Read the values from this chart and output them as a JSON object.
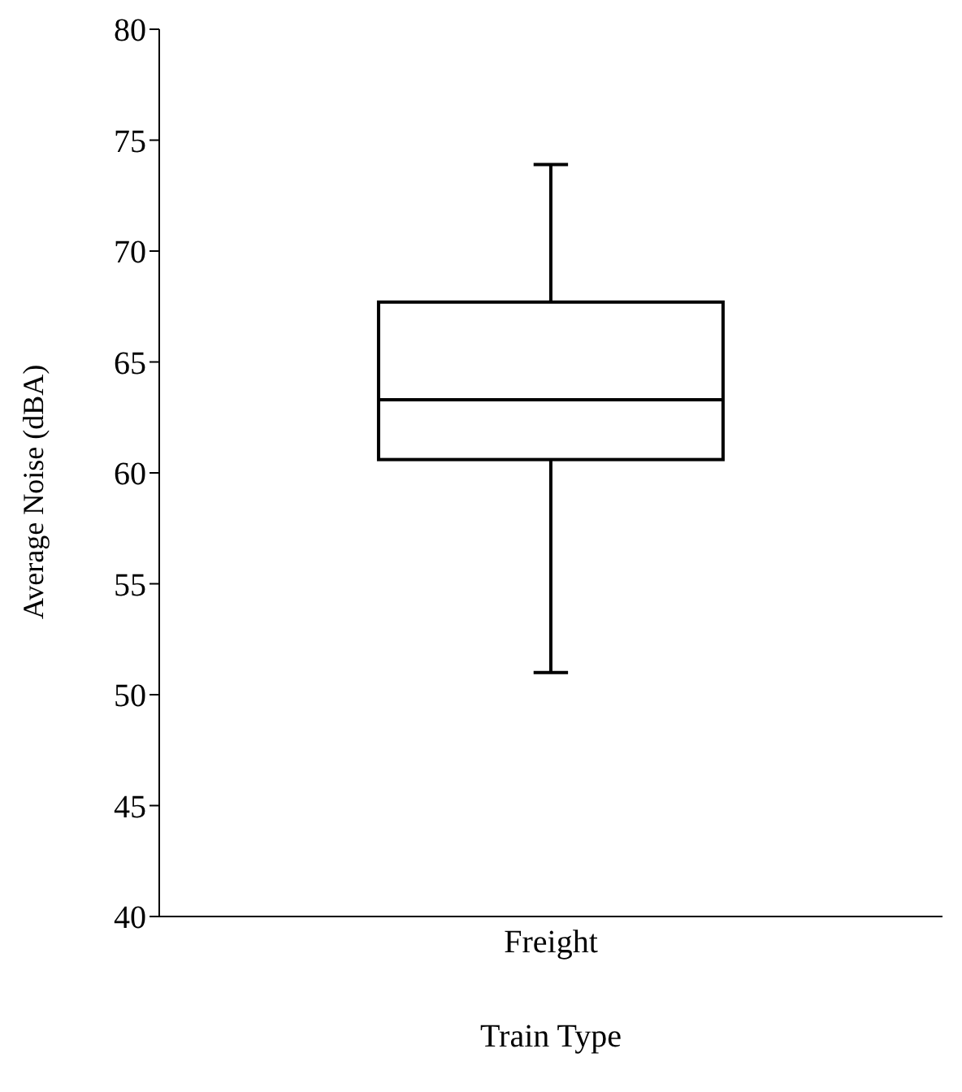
{
  "chart_data": {
    "type": "box",
    "categories": [
      "Freight"
    ],
    "boxes": [
      {
        "low": 51.0,
        "q1": 60.6,
        "median": 63.3,
        "q3": 67.7,
        "high": 73.9
      }
    ],
    "color": "#000000",
    "xlabel": "Train Type",
    "ylabel": "Average Noise (dBA)",
    "ylim": [
      40,
      80
    ],
    "yticks": [
      40,
      45,
      50,
      55,
      60,
      65,
      70,
      75,
      80
    ],
    "grid": false,
    "legend": false
  }
}
